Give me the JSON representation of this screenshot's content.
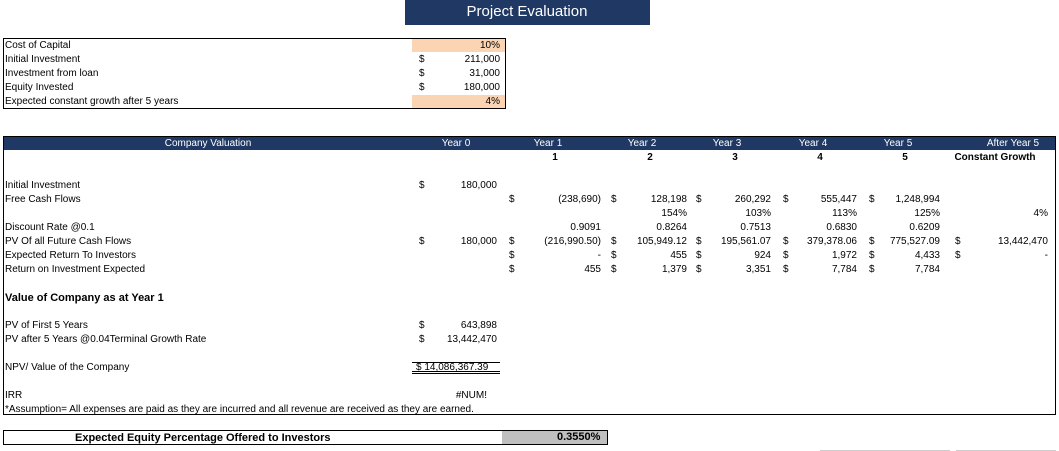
{
  "header": {
    "title": "Project Evaluation"
  },
  "inputs": {
    "rows": [
      {
        "label": "Cost of Capital",
        "value": "10%"
      },
      {
        "label": "Initial Investment",
        "symbol": "$",
        "value": "211,000"
      },
      {
        "label": "Investment from loan",
        "symbol": "$",
        "value": "31,000"
      },
      {
        "label": "Equity Invested",
        "symbol": "$",
        "value": "180,000"
      },
      {
        "label": "Expected constant growth after 5 years",
        "value": "4%"
      }
    ]
  },
  "valuation": {
    "header": {
      "label": "Company Valuation",
      "years": [
        "Year 0",
        "Year 1",
        "Year 2",
        "Year 3",
        "Year 4",
        "Year 5",
        "After Year 5"
      ],
      "periods": [
        "1",
        "2",
        "3",
        "4",
        "5",
        "Constant Growth"
      ]
    },
    "rows": [
      {
        "label": "Initial Investment",
        "cells": [
          "$",
          "180,000"
        ]
      },
      {
        "label": "Free Cash Flows",
        "cells": [
          "$",
          "(238,690)",
          "$",
          "128,198",
          "$",
          "260,292",
          "$",
          "555,447",
          "$",
          "1,248,994"
        ]
      },
      {
        "cells": [
          "154%",
          "103%",
          "113%",
          "125%",
          "4%"
        ]
      },
      {
        "label": "Discount Rate @0.1",
        "cells": [
          "0.9091",
          "0.8264",
          "0.7513",
          "0.6830",
          "0.6209"
        ]
      },
      {
        "label": "PV Of all Future Cash Flows",
        "cells": [
          "$",
          "180,000",
          "$",
          "(216,990.50)",
          "$",
          "105,949.12",
          "$",
          "195,561.07",
          "$",
          "379,378.06",
          "$",
          "775,527.09",
          "$",
          "13,442,470"
        ]
      },
      {
        "label": "Expected Return To Investors",
        "cells": [
          "$",
          "-",
          "$",
          "455",
          "$",
          "924",
          "$",
          "1,972",
          "$",
          "4,433",
          "$",
          "-"
        ]
      },
      {
        "label": "Return on Investment Expected",
        "cells": [
          "$",
          "455",
          "$",
          "1,379",
          "$",
          "3,351",
          "$",
          "7,784",
          "$",
          "7,784"
        ]
      }
    ]
  },
  "summary": {
    "heading": "Value of Company as at Year 1",
    "rows": [
      {
        "label": "PV of First 5 Years",
        "symbol": "$",
        "value": "643,898"
      },
      {
        "label": "PV after 5 Years @0.04Terminal Growth Rate",
        "symbol": "$",
        "value": "13,442,470"
      }
    ],
    "npv": {
      "label": "NPV/ Value of the Company",
      "value": "$ 14,086,367.39"
    },
    "irr": {
      "label": "IRR",
      "value": "#NUM!"
    },
    "note": "*Assumption= All expenses are paid as they are incurred and all revenue are received as they are earned."
  },
  "footer": {
    "label": "Expected Equity Percentage Offered to Investors",
    "value": "0.3550%"
  }
}
